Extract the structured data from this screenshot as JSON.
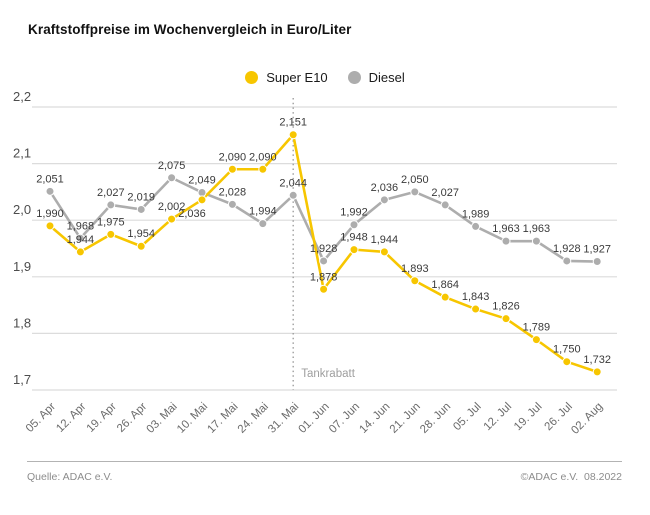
{
  "title": "Kraftstoffpreise im Wochenvergleich in Euro/Liter",
  "legend": {
    "items": [
      {
        "label": "Super E10",
        "color": "#F7C600"
      },
      {
        "label": "Diesel",
        "color": "#ADADAD"
      }
    ]
  },
  "annotation": {
    "label": "Tankrabatt",
    "at_category": "31. Mai",
    "color": "#9E9E9E"
  },
  "footer": {
    "source": "Quelle: ADAC e.V.",
    "copyright": "©ADAC e.V.  08.2022"
  },
  "chart_data": {
    "type": "line",
    "title": "Kraftstoffpreise im Wochenvergleich in Euro/Liter",
    "xlabel": "",
    "ylabel": "Euro/Liter",
    "ylim": [
      1.7,
      2.2
    ],
    "ytick_step": 0.1,
    "ytick_labels": [
      "2,2",
      "2,1",
      "2,0",
      "1,9",
      "1,8",
      "1,7"
    ],
    "grid": true,
    "legend_position": "top-center",
    "decimal_separator": ",",
    "categories": [
      "05. Apr",
      "12. Apr",
      "19. Apr",
      "26. Apr",
      "03. Mai",
      "10. Mai",
      "17. Mai",
      "24. Mai",
      "31. Mai",
      "01. Jun",
      "07. Jun",
      "14. Jun",
      "21. Jun",
      "28. Jun",
      "05. Jul",
      "12. Jul",
      "19. Jul",
      "26. Jul",
      "02. Aug"
    ],
    "series": [
      {
        "name": "Super E10",
        "color": "#F7C600",
        "values": [
          1.99,
          1.944,
          1.975,
          1.954,
          2.002,
          2.036,
          2.09,
          2.09,
          2.151,
          1.878,
          1.948,
          1.944,
          1.893,
          1.864,
          1.843,
          1.826,
          1.789,
          1.75,
          1.732
        ]
      },
      {
        "name": "Diesel",
        "color": "#ADADAD",
        "values": [
          2.051,
          1.968,
          2.027,
          2.019,
          2.075,
          2.049,
          2.028,
          1.994,
          2.044,
          1.928,
          1.992,
          2.036,
          2.05,
          2.027,
          1.989,
          1.963,
          1.963,
          1.928,
          1.927
        ]
      }
    ],
    "annotation_line_category_index": 8,
    "colors": {
      "gridline": "#DCDCDC",
      "data_label": "#3A3A3A",
      "axis_label": "#6B6B6B",
      "annotation": "#9E9E9E"
    }
  }
}
